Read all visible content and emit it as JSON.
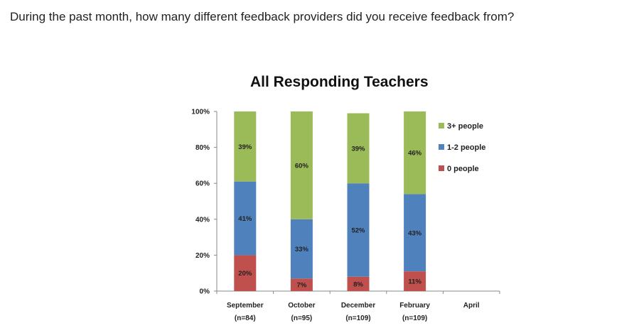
{
  "question": "During the past month, how many different feedback providers did you receive feedback from?",
  "chart_data": {
    "type": "bar",
    "stacked": true,
    "title": "All Responding Teachers",
    "categories": [
      "September",
      "October",
      "December",
      "February",
      "April"
    ],
    "category_sublabels": [
      "(n=84)",
      "(n=95)",
      "(n=109)",
      "(n=109)",
      ""
    ],
    "ylim": [
      0,
      100
    ],
    "yticks": [
      "0%",
      "20%",
      "40%",
      "60%",
      "80%",
      "100%"
    ],
    "series": [
      {
        "name": "0 people",
        "color": "#c0504d",
        "values": [
          20,
          7,
          8,
          11,
          null
        ],
        "labels": [
          "20%",
          "7%",
          "8%",
          "11%",
          ""
        ]
      },
      {
        "name": "1-2 people",
        "color": "#4f81bd",
        "values": [
          41,
          33,
          52,
          43,
          null
        ],
        "labels": [
          "41%",
          "33%",
          "52%",
          "43%",
          ""
        ]
      },
      {
        "name": "3+ people",
        "color": "#9bbb59",
        "values": [
          39,
          60,
          39,
          46,
          null
        ],
        "labels": [
          "39%",
          "60%",
          "39%",
          "46%",
          ""
        ]
      }
    ],
    "legend": {
      "position": "right",
      "order": [
        "3+ people",
        "1-2 people",
        "0 people"
      ]
    }
  }
}
